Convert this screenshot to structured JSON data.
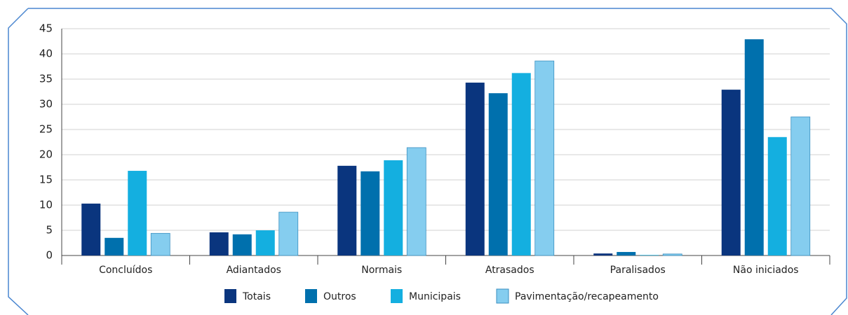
{
  "chart_data": {
    "type": "bar",
    "categories": [
      "Concluídos",
      "Adiantados",
      "Normais",
      "Atrasados",
      "Paralisados",
      "Não iniciados"
    ],
    "series": [
      {
        "name": "Totais",
        "color": "#0a357e",
        "values": [
          10.3,
          4.6,
          17.8,
          34.3,
          0.4,
          32.9
        ]
      },
      {
        "name": "Outros",
        "color": "#0070ad",
        "values": [
          3.5,
          4.2,
          16.7,
          32.2,
          0.7,
          42.9
        ]
      },
      {
        "name": "Municipais",
        "color": "#14afe0",
        "values": [
          16.8,
          5.0,
          18.9,
          36.2,
          0.1,
          23.5
        ]
      },
      {
        "name": "Pavimentação/recapeamento",
        "color": "#85cdef",
        "values": [
          4.4,
          8.6,
          21.4,
          38.6,
          0.3,
          27.5
        ]
      }
    ],
    "ylim": [
      0,
      45
    ],
    "yticks": [
      0,
      5,
      10,
      15,
      20,
      25,
      30,
      35,
      40,
      45
    ],
    "grid": true
  }
}
